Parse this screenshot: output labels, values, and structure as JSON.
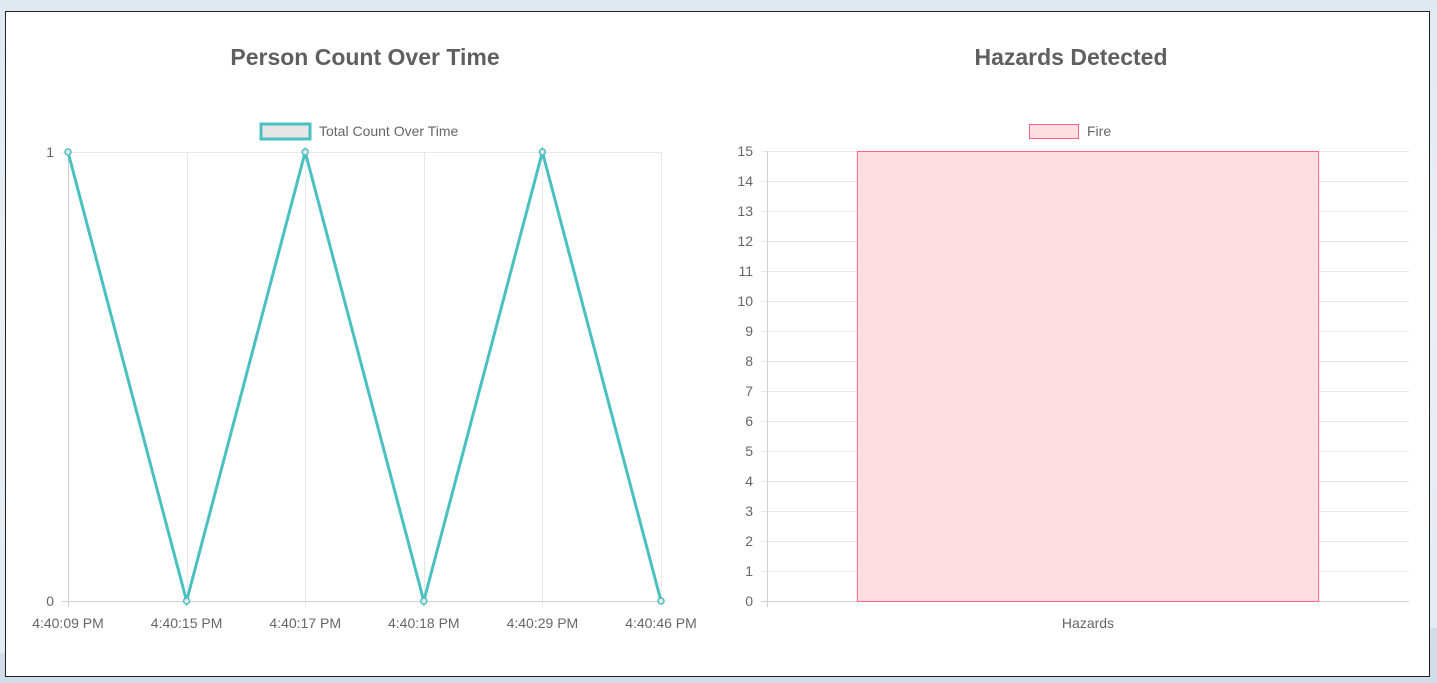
{
  "chart_data": [
    {
      "type": "line",
      "title": "Person Count Over Time",
      "categories": [
        "4:40:09 PM",
        "4:40:15 PM",
        "4:40:17 PM",
        "4:40:18 PM",
        "4:40:29 PM",
        "4:40:46 PM"
      ],
      "series": [
        {
          "name": "Total Count Over Time",
          "values": [
            1,
            0,
            1,
            0,
            1,
            0
          ],
          "color": "#4bc0c0"
        }
      ],
      "yticks": [
        0,
        1
      ],
      "ylim": [
        0,
        1
      ],
      "grid": true,
      "legend": "top"
    },
    {
      "type": "bar",
      "title": "Hazards Detected",
      "categories": [
        "Hazards"
      ],
      "series": [
        {
          "name": "Fire",
          "values": [
            15
          ],
          "color": "#ff6384",
          "fill": "#ffdee4"
        }
      ],
      "yticks": [
        0,
        1,
        2,
        3,
        4,
        5,
        6,
        7,
        8,
        9,
        10,
        11,
        12,
        13,
        14,
        15
      ],
      "ylim": [
        0,
        15
      ],
      "grid": true,
      "legend": "top"
    }
  ]
}
